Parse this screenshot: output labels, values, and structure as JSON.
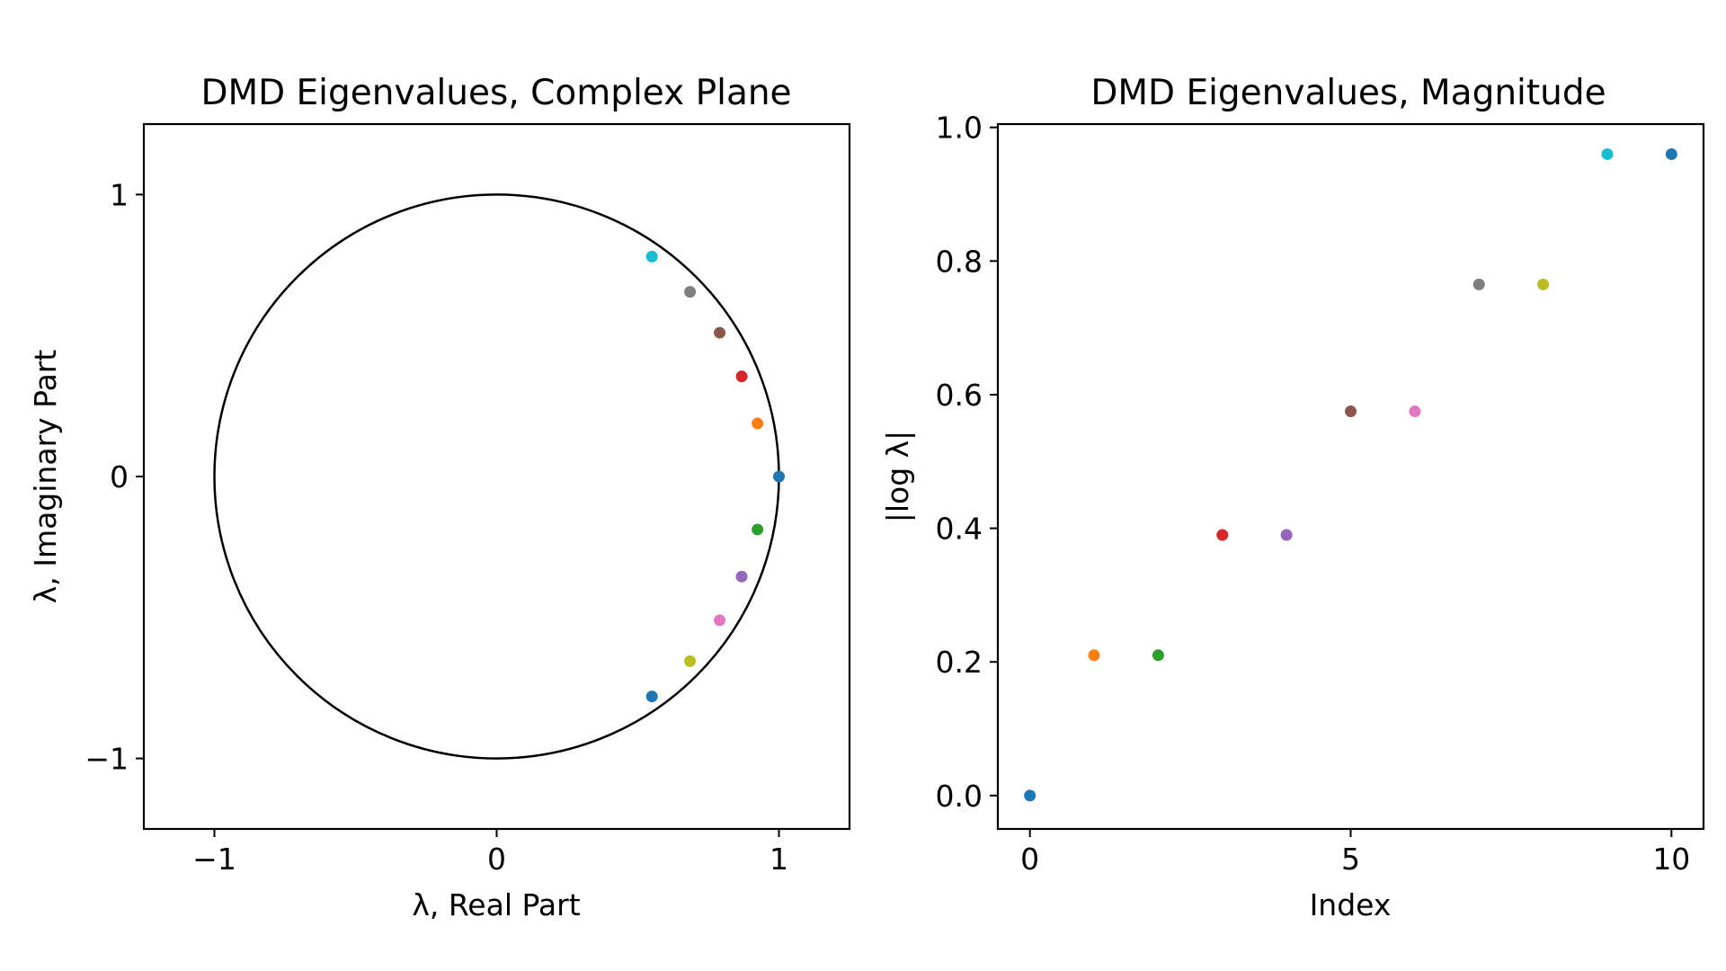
{
  "chart_data": [
    {
      "type": "scatter",
      "title": "DMD Eigenvalues, Complex Plane",
      "xlabel": "λ, Real Part",
      "ylabel": "λ, Imaginary Part",
      "xlim": [
        -1.25,
        1.25
      ],
      "ylim": [
        -1.25,
        1.25
      ],
      "xticks": [
        -1,
        0,
        1
      ],
      "xtick_labels": [
        "−1",
        "0",
        "1"
      ],
      "yticks": [
        -1,
        0,
        1
      ],
      "ytick_labels": [
        "−1",
        "0",
        "1"
      ],
      "grid": false,
      "unit_circle": true,
      "points": [
        {
          "x": 1.0,
          "y": 0.0,
          "color": "#1f77b4"
        },
        {
          "x": 0.924,
          "y": 0.188,
          "color": "#ff7f0e"
        },
        {
          "x": 0.924,
          "y": -0.188,
          "color": "#2ca02c"
        },
        {
          "x": 0.868,
          "y": 0.355,
          "color": "#d62728"
        },
        {
          "x": 0.868,
          "y": -0.355,
          "color": "#9467bd"
        },
        {
          "x": 0.79,
          "y": 0.51,
          "color": "#8c564b"
        },
        {
          "x": 0.79,
          "y": -0.51,
          "color": "#e377c2"
        },
        {
          "x": 0.685,
          "y": 0.655,
          "color": "#7f7f7f"
        },
        {
          "x": 0.685,
          "y": -0.655,
          "color": "#bcbd22"
        },
        {
          "x": 0.55,
          "y": 0.78,
          "color": "#17becf"
        },
        {
          "x": 0.55,
          "y": -0.78,
          "color": "#1f77b4"
        }
      ]
    },
    {
      "type": "scatter",
      "title": "DMD Eigenvalues, Magnitude",
      "xlabel": "Index",
      "ylabel": "|log λ|",
      "xlim": [
        -0.5,
        10.5
      ],
      "ylim": [
        -0.05,
        1.005
      ],
      "xticks": [
        0,
        5,
        10
      ],
      "xtick_labels": [
        "0",
        "5",
        "10"
      ],
      "yticks": [
        0.0,
        0.2,
        0.4,
        0.6,
        0.8,
        1.0
      ],
      "ytick_labels": [
        "0.0",
        "0.2",
        "0.4",
        "0.6",
        "0.8",
        "1.0"
      ],
      "grid": false,
      "points": [
        {
          "x": 0,
          "y": 0.0,
          "color": "#1f77b4"
        },
        {
          "x": 1,
          "y": 0.21,
          "color": "#ff7f0e"
        },
        {
          "x": 2,
          "y": 0.21,
          "color": "#2ca02c"
        },
        {
          "x": 3,
          "y": 0.39,
          "color": "#d62728"
        },
        {
          "x": 4,
          "y": 0.39,
          "color": "#9467bd"
        },
        {
          "x": 5,
          "y": 0.575,
          "color": "#8c564b"
        },
        {
          "x": 6,
          "y": 0.575,
          "color": "#e377c2"
        },
        {
          "x": 7,
          "y": 0.765,
          "color": "#7f7f7f"
        },
        {
          "x": 8,
          "y": 0.765,
          "color": "#bcbd22"
        },
        {
          "x": 9,
          "y": 0.96,
          "color": "#17becf"
        },
        {
          "x": 10,
          "y": 0.96,
          "color": "#1f77b4"
        }
      ]
    }
  ]
}
